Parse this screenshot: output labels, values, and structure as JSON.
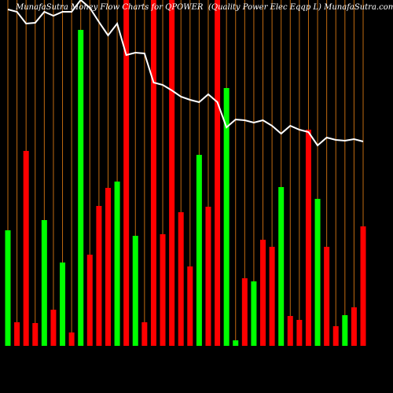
{
  "chart_data": {
    "type": "bar",
    "title": "MunafaSutra  Money Flow  Charts for QPOWER",
    "subtitle": "(Quality Power Elec Eqqp L) MunafaSutra.com",
    "ylim": [
      0,
      440
    ],
    "y2lim": [
      0,
      200
    ],
    "series": [
      {
        "name": "Money flow",
        "colors": [
          "#00ff00",
          "#ff0000",
          "#ff0000",
          "#ff0000",
          "#00ff00",
          "#ff0000",
          "#00ff00",
          "#ff0000",
          "#00ff00",
          "#ff0000",
          "#ff0000",
          "#ff0000",
          "#00ff00",
          "#ff0000",
          "#00ff00",
          "#ff0000",
          "#ff0000",
          "#ff0000",
          "#ff0000",
          "#ff0000",
          "#ff0000",
          "#00ff00",
          "#ff0000",
          "#ff0000",
          "#00ff00",
          "#00ff00",
          "#ff0000",
          "#00ff00",
          "#ff0000",
          "#ff0000",
          "#00ff00",
          "#ff0000",
          "#ff0000",
          "#ff0000",
          "#00ff00",
          "#ff0000",
          "#ff0000",
          "#00ff00",
          "#ff0000",
          "#ff0000"
        ],
        "values": [
          147,
          30,
          248,
          29,
          160,
          46,
          106,
          17,
          402,
          116,
          178,
          201,
          209,
          440,
          140,
          30,
          440,
          142,
          440,
          170,
          101,
          243,
          177,
          440,
          328,
          7,
          86,
          82,
          135,
          126,
          202,
          38,
          33,
          275,
          187,
          126,
          25,
          39,
          49,
          152
        ]
      },
      {
        "name": "Price",
        "color": "#ffffff",
        "axis": "y2",
        "values": [
          188,
          185,
          170,
          171,
          185,
          180,
          185,
          185,
          200,
          190,
          172,
          155,
          170,
          130,
          133,
          132,
          95,
          92,
          85,
          77,
          73,
          70,
          80,
          70,
          38,
          48,
          47,
          44,
          47,
          40,
          30,
          40,
          35,
          32,
          15,
          25,
          22,
          21,
          23,
          20
        ]
      }
    ]
  }
}
